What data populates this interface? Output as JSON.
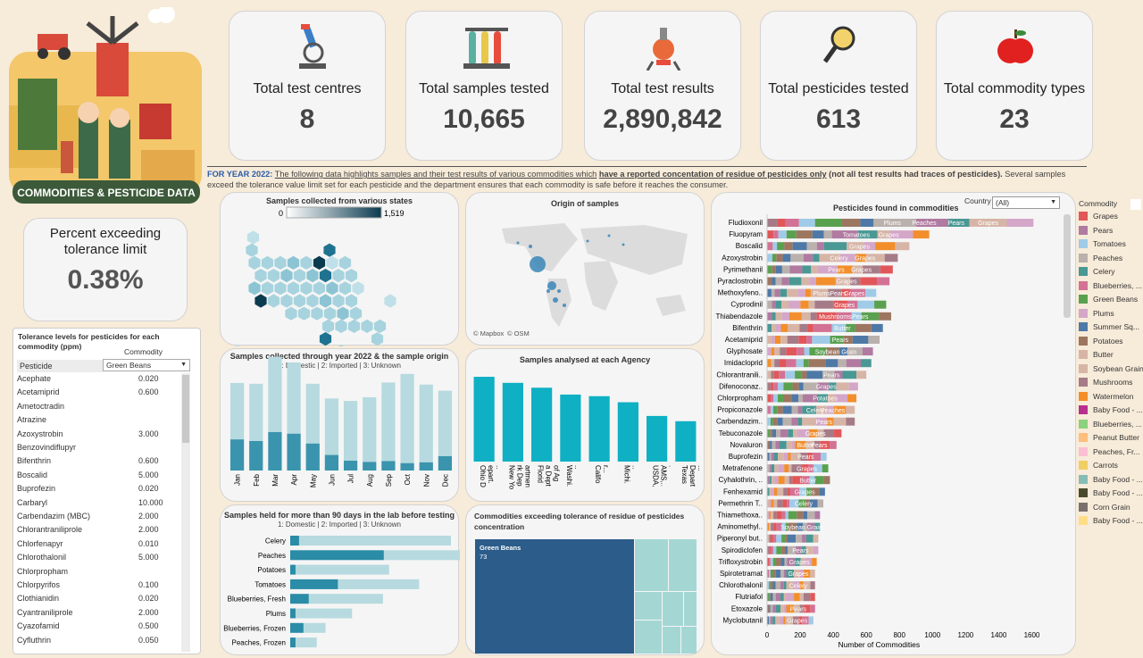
{
  "banner": {
    "title": "COMMODITIES & PESTICIDE DATA"
  },
  "kpis": [
    {
      "label": "Total test centres",
      "value": "8",
      "icon": "microscope-icon"
    },
    {
      "label": "Total samples tested",
      "value": "10,665",
      "icon": "test-tubes-icon"
    },
    {
      "label": "Total test results",
      "value": "2,890,842",
      "icon": "chemistry-flask-icon"
    },
    {
      "label": "Total pesticides tested",
      "value": "613",
      "icon": "magnifier-icon"
    },
    {
      "label": "Total commodity types",
      "value": "23",
      "icon": "apple-icon"
    }
  ],
  "intro": {
    "year": "FOR YEAR 2022:",
    "p1": "The following data highlights samples and their test results of various commodities which",
    "p2": "have a reported concentation of residue of pesticides only",
    "p3": "(not all test results had traces of pesticides).",
    "p4": "Several samples exceed the tolerance value limit set for each pesticide and the department ensures that each commodity is safe before it reaches the consumer."
  },
  "percent": {
    "label": "Percent exceeding tolerance limit",
    "value": "0.38%"
  },
  "tolerance": {
    "title": "Tolerance levels for pesticides for each commodity (ppm)",
    "commodity_label": "Commodity",
    "pesticide_label": "Pesticide",
    "selected": "Green Beans",
    "rows": [
      {
        "name": "Acephate",
        "value": "0.020"
      },
      {
        "name": "Acetamiprid",
        "value": "0.600"
      },
      {
        "name": "Ametoctradin",
        "value": ""
      },
      {
        "name": "Atrazine",
        "value": ""
      },
      {
        "name": "Azoxystrobin",
        "value": "3.000"
      },
      {
        "name": "Benzovindiflupyr",
        "value": ""
      },
      {
        "name": "Bifenthrin",
        "value": "0.600"
      },
      {
        "name": "Boscalid",
        "value": "5.000"
      },
      {
        "name": "Buprofezin",
        "value": "0.020"
      },
      {
        "name": "Carbaryl",
        "value": "10.000"
      },
      {
        "name": "Carbendazim (MBC)",
        "value": "2.000"
      },
      {
        "name": "Chlorantraniliprole",
        "value": "2.000"
      },
      {
        "name": "Chlorfenapyr",
        "value": "0.010"
      },
      {
        "name": "Chlorothalonil",
        "value": "5.000"
      },
      {
        "name": "Chlorpropham",
        "value": ""
      },
      {
        "name": "Chlorpyrifos",
        "value": "0.100"
      },
      {
        "name": "Clothianidin",
        "value": "0.020"
      },
      {
        "name": "Cyantraniliprole",
        "value": "2.000"
      },
      {
        "name": "Cyazofamid",
        "value": "0.500"
      },
      {
        "name": "Cyfluthrin",
        "value": "0.050"
      }
    ]
  },
  "colors": {
    "teal": "#0fb0c4",
    "dark_teal": "#3a94ad",
    "light_teal": "#b6dadf",
    "navy": "#2b5c8a"
  },
  "chart_data": [
    {
      "type": "heatmap",
      "title": "Samples collected from various states",
      "color_range": [
        "0",
        "1,519"
      ]
    },
    {
      "type": "scatter",
      "title": "Origin of samples",
      "attribution": [
        "© Mapbox",
        "© OSM"
      ]
    },
    {
      "type": "bar",
      "title": "Samples collected through year 2022 & the sample origin",
      "subtitle": "1: Domestic | 2: Imported | 3: Unknown",
      "categories": [
        "Jan",
        "Feb",
        "Mar",
        "Apr",
        "May",
        "Jun",
        "Jul",
        "Aug",
        "Sep",
        "Oct",
        "Nov",
        "Dec"
      ],
      "series": [
        {
          "values": [
            380,
            360,
            470,
            450,
            330,
            190,
            120,
            105,
            115,
            90,
            100,
            175
          ]
        },
        {
          "values": [
            690,
            700,
            920,
            870,
            730,
            690,
            730,
            790,
            960,
            1090,
            950,
            800
          ]
        }
      ],
      "ylim": [
        0,
        1200
      ]
    },
    {
      "type": "bar",
      "title": "Samples analysed at each Agency",
      "categories": [
        "Ohio Depart...",
        "New York Department...",
        "Florida Dept of Agricul...",
        "Washi...",
        "Califor...",
        "Michi...",
        "USDA, AMS,...",
        "Texas Depart..."
      ],
      "values": [
        2100,
        1950,
        1830,
        1660,
        1620,
        1470,
        1130,
        1000
      ],
      "ylim": [
        0,
        2300
      ]
    },
    {
      "type": "bar",
      "title": "Samples held for more than 90 days in the lab before testing",
      "subtitle": "1: Domestic | 2: Imported | 3: Unknown",
      "categories": [
        "Celery",
        "Peaches",
        "Potatoes",
        "Tomatoes",
        "Blueberries, Fresh",
        "Plums",
        "Blueberries, Frozen",
        "Peaches, Frozen"
      ],
      "series": [
        {
          "values": [
            10,
            106,
            6,
            54,
            21,
            6,
            15,
            6
          ]
        },
        {
          "values": [
            172,
            123,
            106,
            92,
            84,
            64,
            25,
            24
          ]
        }
      ],
      "xlim": [
        0,
        180
      ]
    },
    {
      "type": "heatmap",
      "title": "Commodities exceeding tolerance of residue of pesticides concentration",
      "labels": [
        {
          "name": "Green Beans",
          "value": 73
        }
      ]
    },
    {
      "type": "bar",
      "title": "Pesticides found in commodities",
      "filter_label": "Country",
      "filter_value": "(All)",
      "xlabel": "Number of Commodities",
      "xticks": [
        0,
        200,
        400,
        600,
        800,
        1000,
        1200,
        1400,
        1600
      ],
      "xlim": [
        0,
        1700
      ],
      "categories": [
        "Fludioxonil",
        "Fluopyram",
        "Boscalid",
        "Azoxystrobin",
        "Pyrimethanil",
        "Pyraclostrobin",
        "Methoxyfeno..",
        "Cyprodinil",
        "Thiabendazole",
        "Bifenthrin",
        "Acetamiprid",
        "Glyphosate",
        "Imidacloprid",
        "Chlorantranili..",
        "Difenoconaz..",
        "Chlorpropham",
        "Propiconazole",
        "Carbendazim..",
        "Tebuconazole",
        "Novaluron",
        "Buprofezin",
        "Metrafenone",
        "Cyhalothrin, ..",
        "Fenhexamid",
        "Permethrin T..",
        "Thiamethoxa..",
        "Aminomethyl..",
        "Piperonyl but..",
        "Spirodiclofen",
        "Trifloxystrobin",
        "Spirotetramat",
        "Chlorothalonil",
        "Flutriafol",
        "Etoxazole",
        "Myclobutanil"
      ],
      "values": [
        1610,
        980,
        860,
        790,
        760,
        740,
        660,
        720,
        750,
        700,
        680,
        640,
        630,
        600,
        550,
        540,
        530,
        530,
        450,
        420,
        360,
        370,
        380,
        350,
        340,
        320,
        320,
        310,
        310,
        300,
        290,
        290,
        290,
        290,
        280
      ],
      "labels": [
        {
          "text": "Plums",
          "bar": 0
        },
        {
          "text": "Peaches",
          "bar": 0
        },
        {
          "text": "Pears",
          "bar": 0
        },
        {
          "text": "Grapes",
          "bar": 0
        },
        {
          "text": "Tomatoes",
          "bar": 1
        },
        {
          "text": "Grapes",
          "bar": 1
        },
        {
          "text": "Grapes",
          "bar": 2
        },
        {
          "text": "Celery",
          "bar": 3
        },
        {
          "text": "Grapes",
          "bar": 3
        },
        {
          "text": "Pears",
          "bar": 4
        },
        {
          "text": "Grapes",
          "bar": 4
        },
        {
          "text": "Grapes",
          "bar": 5
        },
        {
          "text": "Plums",
          "bar": 6
        },
        {
          "text": "Pears",
          "bar": 6
        },
        {
          "text": "Grapes",
          "bar": 6
        },
        {
          "text": "Grapes",
          "bar": 7
        },
        {
          "text": "Mushrooms",
          "bar": 8
        },
        {
          "text": "Pears",
          "bar": 8
        },
        {
          "text": "Butter",
          "bar": 9
        },
        {
          "text": "Pears",
          "bar": 10
        },
        {
          "text": "Soybean Grain",
          "bar": 11
        },
        {
          "text": "Pears",
          "bar": 13
        },
        {
          "text": "Grapes",
          "bar": 14
        },
        {
          "text": "Potatoes",
          "bar": 15
        },
        {
          "text": "Celery",
          "bar": 16
        },
        {
          "text": "Peaches",
          "bar": 16
        },
        {
          "text": "Pears",
          "bar": 17
        },
        {
          "text": "Grapes",
          "bar": 18
        },
        {
          "text": "Butter",
          "bar": 19
        },
        {
          "text": "Pears",
          "bar": 19
        },
        {
          "text": "Pears",
          "bar": 20
        },
        {
          "text": "Grapes",
          "bar": 21
        },
        {
          "text": "Butter",
          "bar": 22
        },
        {
          "text": "Grapes",
          "bar": 23
        },
        {
          "text": "Celery",
          "bar": 24
        },
        {
          "text": "Soybean Grain",
          "bar": 26
        },
        {
          "text": "Pears",
          "bar": 28
        },
        {
          "text": "Grapes",
          "bar": 29
        },
        {
          "text": "Grapes",
          "bar": 30
        },
        {
          "text": "Celery",
          "bar": 31
        },
        {
          "text": "Pears",
          "bar": 33
        },
        {
          "text": "Grapes",
          "bar": 34
        }
      ]
    }
  ],
  "legend": {
    "title": "Commodity",
    "items": [
      {
        "name": "Grapes",
        "color": "#e15759"
      },
      {
        "name": "Pears",
        "color": "#b07aa1"
      },
      {
        "name": "Tomatoes",
        "color": "#a0cbe8"
      },
      {
        "name": "Peaches",
        "color": "#bab0ac"
      },
      {
        "name": "Celery",
        "color": "#499894"
      },
      {
        "name": "Blueberries, ...",
        "color": "#d37295"
      },
      {
        "name": "Green Beans",
        "color": "#59a14f"
      },
      {
        "name": "Plums",
        "color": "#d4a6c8"
      },
      {
        "name": "Summer Sq...",
        "color": "#4e79a7"
      },
      {
        "name": "Potatoes",
        "color": "#9d7660"
      },
      {
        "name": "Butter",
        "color": "#d7b5a6"
      },
      {
        "name": "Soybean Grain",
        "color": "#d7b5a6"
      },
      {
        "name": "Mushrooms",
        "color": "#a67b88"
      },
      {
        "name": "Watermelon",
        "color": "#f28e2b"
      },
      {
        "name": "Baby Food - ...",
        "color": "#b8308f"
      },
      {
        "name": "Blueberries, ...",
        "color": "#8cd17d"
      },
      {
        "name": "Peanut Butter",
        "color": "#ffbe7d"
      },
      {
        "name": "Peaches, Fr...",
        "color": "#fabfd2"
      },
      {
        "name": "Carrots",
        "color": "#f1ce63"
      },
      {
        "name": "Baby Food - ...",
        "color": "#86bcb6"
      },
      {
        "name": "Baby Food - ...",
        "color": "#4b4b2b"
      },
      {
        "name": "Corn Grain",
        "color": "#79706e"
      },
      {
        "name": "Baby Food - ...",
        "color": "#ffdd88"
      }
    ]
  }
}
